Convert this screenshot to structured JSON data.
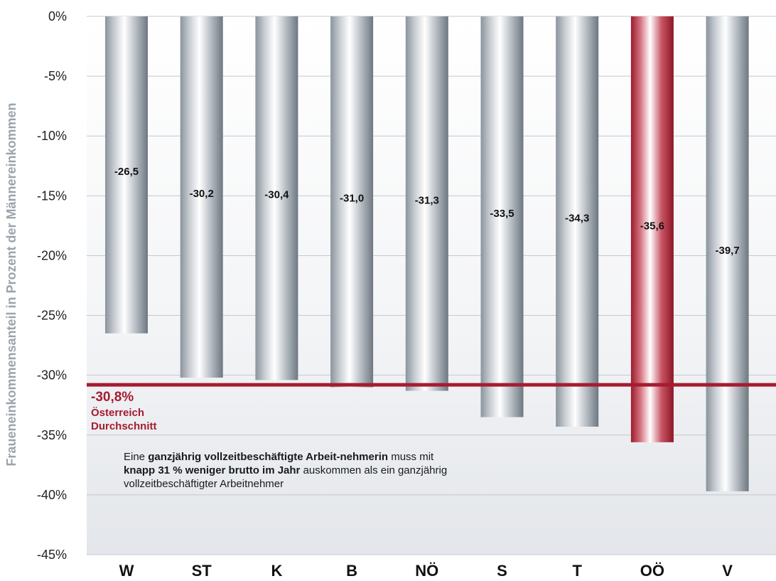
{
  "chart_data": {
    "type": "bar",
    "ylabel": "Fraueneinkommensanteil in Prozent der Männereinkommen",
    "ylim": [
      -45,
      0
    ],
    "yticks": [
      0,
      -5,
      -10,
      -15,
      -20,
      -25,
      -30,
      -35,
      -40,
      -45
    ],
    "ytick_labels": [
      "0%",
      "-5%",
      "-10%",
      "-15%",
      "-20%",
      "-25%",
      "-30%",
      "-35%",
      "-40%",
      "-45%"
    ],
    "categories": [
      "W",
      "ST",
      "K",
      "B",
      "NÖ",
      "S",
      "T",
      "OÖ",
      "V"
    ],
    "values": [
      -26.5,
      -30.2,
      -30.4,
      -31.0,
      -31.3,
      -33.5,
      -34.3,
      -35.6,
      -39.7
    ],
    "value_labels": [
      "-26,5",
      "-30,2",
      "-30,4",
      "-31,0",
      "-31,3",
      "-33,5",
      "-34,3",
      "-35,6",
      "-39,7"
    ],
    "highlight_category": "OÖ",
    "reference_line": {
      "value": -30.8,
      "label_value": "-30,8%",
      "label_line1": "Österreich",
      "label_line2": "Durchschnitt"
    },
    "annotation": {
      "p1": "Eine ",
      "b1": "ganzjährig vollzeitbeschäftigte Arbeit-nehmerin",
      "p2": " muss mit ",
      "b2": "knapp 31 % weniger brutto im Jahr",
      "p3": " auskommen als ein ganzjährig vollzeitbeschäftigter Arbeitnehmer"
    },
    "colors": {
      "bar": "#9aa4ae",
      "highlight": "#a51c30",
      "reference_line": "#a51c30",
      "axis_label": "#9aa3ac"
    },
    "grid": true
  }
}
